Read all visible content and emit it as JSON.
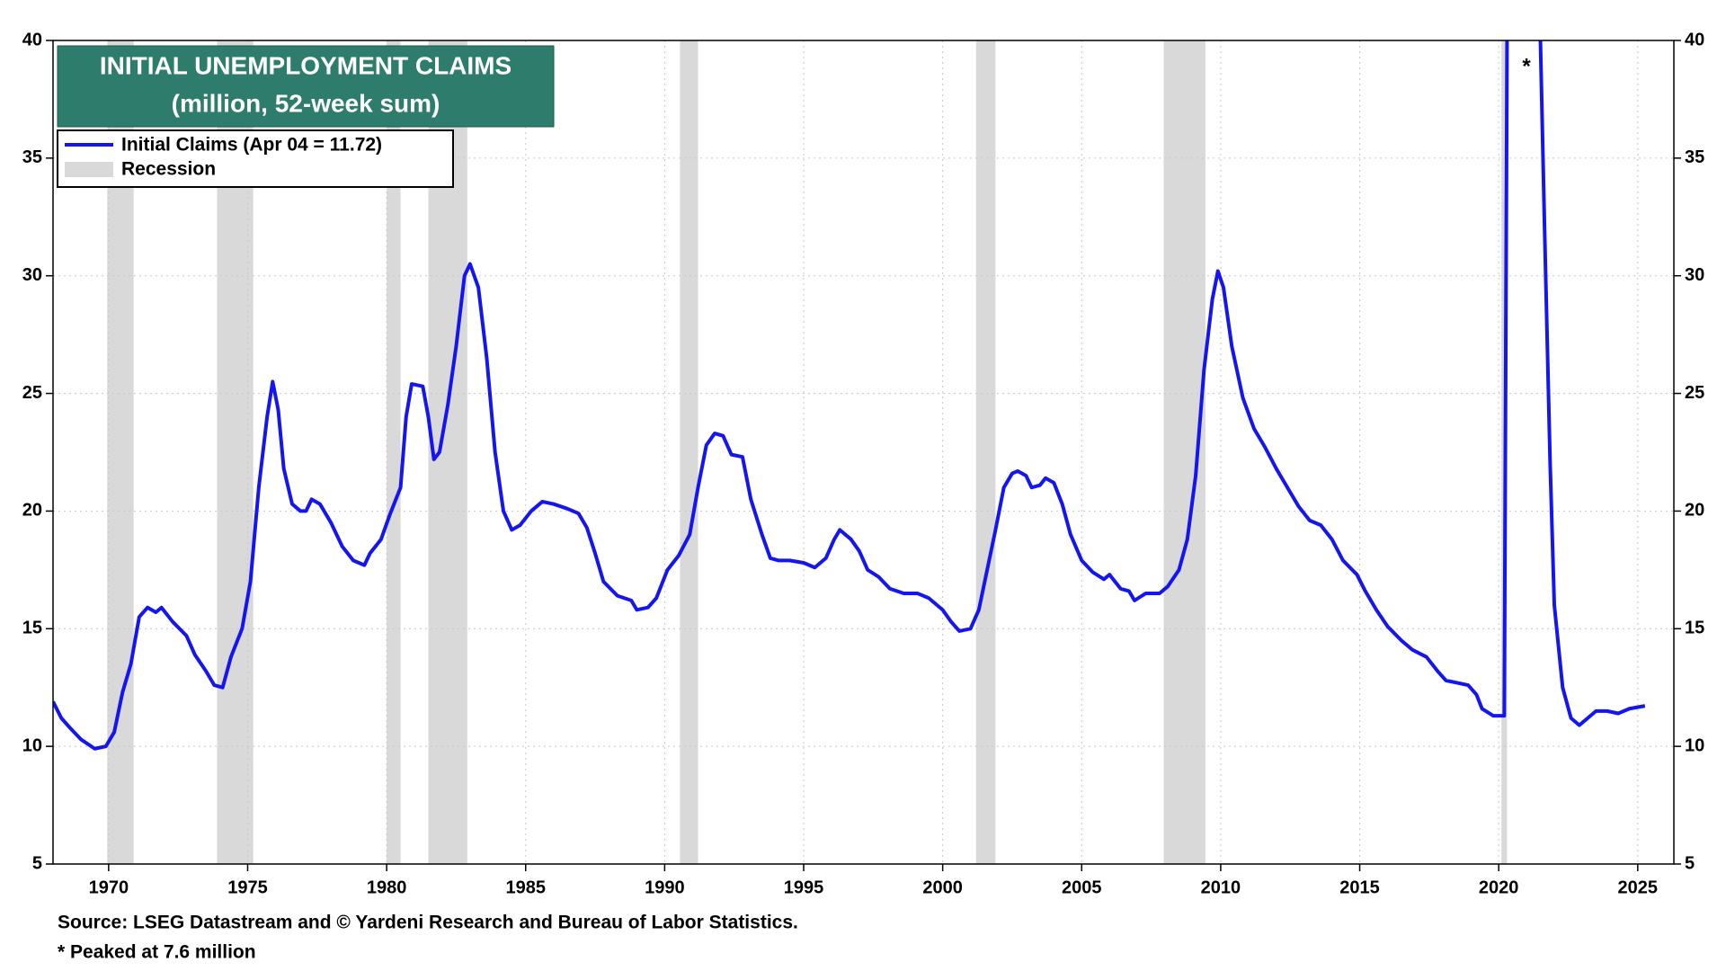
{
  "chart_data": {
    "type": "line",
    "title": "INITIAL UNEMPLOYMENT CLAIMS",
    "subtitle": "(million, 52-week sum)",
    "x": [
      1968.0,
      1968.3,
      1968.6,
      1969.0,
      1969.5,
      1969.9,
      1970.2,
      1970.5,
      1970.8,
      1971.1,
      1971.4,
      1971.7,
      1971.9,
      1972.3,
      1972.8,
      1973.1,
      1973.5,
      1973.8,
      1974.1,
      1974.4,
      1974.8,
      1975.1,
      1975.4,
      1975.7,
      1975.9,
      1976.1,
      1976.3,
      1976.6,
      1976.9,
      1977.1,
      1977.3,
      1977.6,
      1978.0,
      1978.4,
      1978.8,
      1979.2,
      1979.4,
      1979.8,
      1980.1,
      1980.5,
      1980.7,
      1980.9,
      1981.3,
      1981.5,
      1981.7,
      1981.9,
      1982.2,
      1982.5,
      1982.8,
      1983.0,
      1983.3,
      1983.6,
      1983.9,
      1984.2,
      1984.5,
      1984.8,
      1985.2,
      1985.6,
      1986.0,
      1986.5,
      1986.9,
      1987.2,
      1987.5,
      1987.8,
      1988.3,
      1988.8,
      1989.0,
      1989.4,
      1989.7,
      1990.1,
      1990.5,
      1990.9,
      1991.2,
      1991.5,
      1991.8,
      1992.1,
      1992.4,
      1992.8,
      1993.1,
      1993.5,
      1993.8,
      1994.1,
      1994.5,
      1995.0,
      1995.4,
      1995.8,
      1996.1,
      1996.3,
      1996.7,
      1997.0,
      1997.3,
      1997.7,
      1998.1,
      1998.6,
      1999.1,
      1999.5,
      2000.0,
      2000.3,
      2000.6,
      2001.0,
      2001.3,
      2001.6,
      2001.9,
      2002.2,
      2002.5,
      2002.7,
      2003.0,
      2003.2,
      2003.5,
      2003.7,
      2004.0,
      2004.3,
      2004.6,
      2005.0,
      2005.4,
      2005.8,
      2006.0,
      2006.4,
      2006.7,
      2006.9,
      2007.3,
      2007.8,
      2008.1,
      2008.5,
      2008.8,
      2009.1,
      2009.4,
      2009.7,
      2009.9,
      2010.1,
      2010.4,
      2010.8,
      2011.2,
      2011.6,
      2012.0,
      2012.4,
      2012.8,
      2013.2,
      2013.6,
      2014.0,
      2014.4,
      2014.9,
      2015.2,
      2015.6,
      2016.0,
      2016.5,
      2016.9,
      2017.4,
      2017.8,
      2018.1,
      2018.5,
      2018.9,
      2019.2,
      2019.4,
      2019.8,
      2020.1,
      2020.2,
      2020.3,
      2020.9,
      2021.5,
      2021.65,
      2021.85,
      2022.0,
      2022.3,
      2022.6,
      2022.9,
      2023.2,
      2023.5,
      2023.9,
      2024.3,
      2024.7,
      2025.26
    ],
    "series": [
      {
        "name": "Initial Claims (Apr 04 = 11.72)",
        "color": "#1515f0",
        "values": [
          11.9,
          11.2,
          10.8,
          10.3,
          9.9,
          10.0,
          10.6,
          12.3,
          13.5,
          15.5,
          15.9,
          15.7,
          15.9,
          15.3,
          14.7,
          13.9,
          13.2,
          12.6,
          12.5,
          13.8,
          15.0,
          17.0,
          21.0,
          24.0,
          25.5,
          24.3,
          21.8,
          20.3,
          20.0,
          20.0,
          20.5,
          20.3,
          19.5,
          18.5,
          17.9,
          17.7,
          18.2,
          18.8,
          19.8,
          21.0,
          24.0,
          25.4,
          25.3,
          24.0,
          22.2,
          22.5,
          24.5,
          27.0,
          30.0,
          30.5,
          29.5,
          26.5,
          22.5,
          20.0,
          19.2,
          19.4,
          20.0,
          20.4,
          20.3,
          20.1,
          19.9,
          19.3,
          18.2,
          17.0,
          16.4,
          16.2,
          15.8,
          15.9,
          16.3,
          17.5,
          18.1,
          19.0,
          21.0,
          22.8,
          23.3,
          23.2,
          22.4,
          22.3,
          20.5,
          19.0,
          18.0,
          17.9,
          17.9,
          17.8,
          17.6,
          18.0,
          18.8,
          19.2,
          18.8,
          18.3,
          17.5,
          17.2,
          16.7,
          16.5,
          16.5,
          16.3,
          15.8,
          15.3,
          14.9,
          15.0,
          15.8,
          17.5,
          19.2,
          21.0,
          21.6,
          21.7,
          21.5,
          21.0,
          21.1,
          21.4,
          21.2,
          20.3,
          19.0,
          17.9,
          17.4,
          17.1,
          17.3,
          16.7,
          16.6,
          16.2,
          16.5,
          16.5,
          16.8,
          17.5,
          18.8,
          21.5,
          26.0,
          29.0,
          30.2,
          29.5,
          27.0,
          24.8,
          23.5,
          22.7,
          21.8,
          21.0,
          20.2,
          19.6,
          19.4,
          18.8,
          17.9,
          17.3,
          16.6,
          15.8,
          15.1,
          14.5,
          14.1,
          13.8,
          13.2,
          12.8,
          12.7,
          12.6,
          12.2,
          11.6,
          11.3,
          11.3,
          11.3,
          40,
          null,
          40,
          32,
          22,
          16,
          12.5,
          11.2,
          10.9,
          11.2,
          11.5,
          11.5,
          11.4,
          11.6,
          11.72
        ]
      }
    ],
    "recession_name": "Recession",
    "recession_color": "#d9d9d9",
    "recessions": [
      [
        1969.95,
        1970.9
      ],
      [
        1973.9,
        1975.2
      ],
      [
        1980.0,
        1980.5
      ],
      [
        1981.5,
        1982.9
      ],
      [
        1990.55,
        1991.2
      ],
      [
        2001.2,
        2001.9
      ],
      [
        2007.95,
        2009.45
      ],
      [
        2020.1,
        2020.3
      ]
    ],
    "xlim": [
      1968.0,
      2026.3
    ],
    "xticks": [
      1970,
      1975,
      1980,
      1985,
      1990,
      1995,
      2000,
      2005,
      2010,
      2015,
      2020,
      2025
    ],
    "ylim": [
      5,
      40
    ],
    "yticks": [
      5,
      10,
      15,
      20,
      25,
      30,
      35,
      40
    ],
    "y2lim": [
      5,
      40
    ],
    "y2ticks": [
      5,
      10,
      15,
      20,
      25,
      30,
      35,
      40
    ],
    "grid": true,
    "annotation": "*",
    "annotation_x": 2021.0,
    "source": "Source: LSEG Datastream and © Yardeni Research and Bureau of Labor Statistics.",
    "footnote": "* Peaked at 7.6 million"
  }
}
